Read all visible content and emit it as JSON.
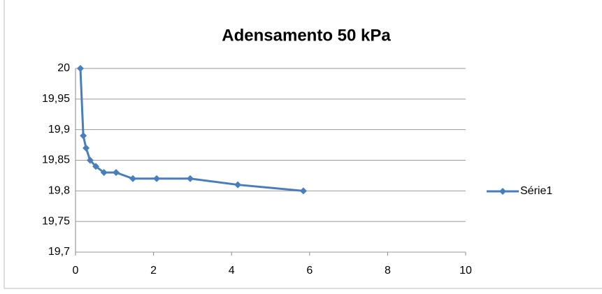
{
  "chart_data": {
    "type": "scatter-line",
    "title": "Adensamento 50 kPa",
    "color": "#4a7ebb",
    "series": [
      {
        "name": "Série1",
        "color": "#4a7ebb",
        "x": [
          0.125,
          0.2,
          0.27,
          0.375,
          0.52,
          0.73,
          1.04,
          1.47,
          2.08,
          2.94,
          4.16,
          5.84
        ],
        "values": [
          20,
          19.89,
          19.87,
          19.85,
          19.84,
          19.83,
          19.83,
          19.82,
          19.82,
          19.82,
          19.81,
          19.8
        ]
      }
    ],
    "xlim": [
      0,
      10
    ],
    "xticks": [
      0,
      2,
      4,
      6,
      8,
      10
    ],
    "ylim": [
      19.7,
      20
    ],
    "yticks": [
      {
        "value": 19.7,
        "label": "19,7"
      },
      {
        "value": 19.75,
        "label": "19,75"
      },
      {
        "value": 19.8,
        "label": "19,8"
      },
      {
        "value": 19.85,
        "label": "19,85"
      },
      {
        "value": 19.9,
        "label": "19,9"
      },
      {
        "value": 19.95,
        "label": "19,95"
      },
      20
    ],
    "grid": true,
    "legend": "right"
  }
}
